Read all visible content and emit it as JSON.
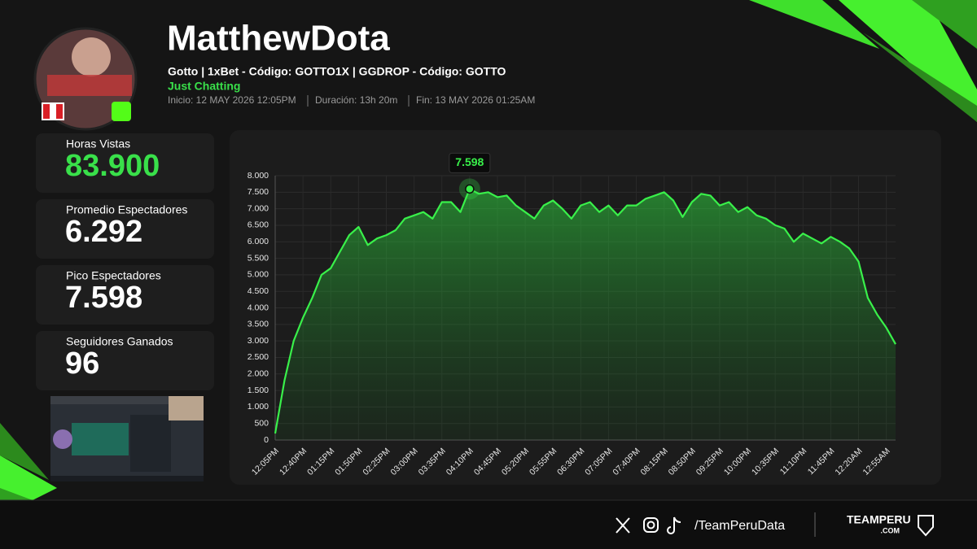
{
  "header": {
    "channel": "MatthewDota",
    "subtitle": "Gotto | 1xBet - Código: GOTTO1X | GGDROP - Código: GOTTO",
    "category": "Just Chatting",
    "start": "Inicio: 12 MAY 2026 12:05PM",
    "duration": "Duración: 13h 20m",
    "end": "Fin: 13 MAY 2026 01:25AM"
  },
  "stats": [
    {
      "label": "Horas Vistas",
      "value": "83.900"
    },
    {
      "label": "Promedio Espectadores",
      "value": "6.292"
    },
    {
      "label": "Pico Espectadores",
      "value": "7.598"
    },
    {
      "label": "Seguidores Ganados",
      "value": "96"
    }
  ],
  "footer": {
    "handle": "/TeamPeruData",
    "brand": "TEAMPERU",
    "domain": ".COM"
  },
  "chart_data": {
    "type": "line",
    "area": true,
    "grid": true,
    "categories": [
      "12:05PM",
      null,
      null,
      "12:40PM",
      null,
      null,
      "01:15PM",
      null,
      null,
      "01:50PM",
      null,
      null,
      "02:25PM",
      null,
      null,
      "03:00PM",
      null,
      null,
      "03:35PM",
      null,
      null,
      "04:10PM",
      null,
      null,
      "04:45PM",
      null,
      null,
      "05:20PM",
      null,
      null,
      "05:55PM",
      null,
      null,
      "06:30PM",
      null,
      null,
      "07:05PM",
      null,
      null,
      "07:40PM",
      null,
      null,
      "08:15PM",
      null,
      null,
      "08:50PM",
      null,
      null,
      "09:25PM",
      null,
      null,
      "10:00PM",
      null,
      null,
      "10:35PM",
      null,
      null,
      "11:10PM",
      null,
      null,
      "11:45PM",
      null,
      null,
      "12:20AM",
      null,
      null,
      "12:55AM",
      null
    ],
    "series": [
      {
        "color": "#39f04a",
        "values": [
          200,
          1800,
          3000,
          3700,
          4300,
          5000,
          5200,
          5700,
          6200,
          6450,
          5900,
          6100,
          6200,
          6350,
          6700,
          6800,
          6900,
          6700,
          7200,
          7200,
          6900,
          7598,
          7450,
          7500,
          7350,
          7400,
          7100,
          6900,
          6700,
          7100,
          7250,
          7000,
          6700,
          7100,
          7200,
          6900,
          7100,
          6800,
          7100,
          7100,
          7300,
          7400,
          7500,
          7250,
          6750,
          7200,
          7450,
          7400,
          7100,
          7200,
          6900,
          7050,
          6800,
          6700,
          6500,
          6400,
          6000,
          6250,
          6100,
          5950,
          6150,
          6000,
          5800,
          5400,
          4300,
          3800,
          3400,
          2900
        ],
        "value_labels": [
          null,
          null,
          null,
          null,
          null,
          null,
          null,
          null,
          null,
          null,
          null,
          null,
          null,
          null,
          null,
          null,
          null,
          null,
          null,
          null,
          null,
          "7.598",
          null,
          null,
          null,
          null,
          null,
          null,
          null,
          null,
          null,
          null,
          null,
          null,
          null,
          null,
          null,
          null,
          null,
          null,
          null,
          null,
          null,
          null,
          null,
          null,
          null,
          null,
          null,
          null,
          null,
          null,
          null,
          null,
          null,
          null,
          null,
          null,
          null,
          null,
          null,
          null,
          null,
          null,
          null,
          null,
          null,
          null
        ]
      }
    ],
    "ylim": [
      0,
      8000
    ],
    "yticks": [
      0,
      500,
      {
        "value": 1000,
        "label": "1.000"
      },
      {
        "value": 1500,
        "label": "1.500"
      },
      {
        "value": 2000,
        "label": "2.000"
      },
      {
        "value": 2500,
        "label": "2.500"
      },
      {
        "value": 3000,
        "label": "3.000"
      },
      {
        "value": 3500,
        "label": "3.500"
      },
      {
        "value": 4000,
        "label": "4.000"
      },
      {
        "value": 4500,
        "label": "4.500"
      },
      {
        "value": 5000,
        "label": "5.000"
      },
      {
        "value": 5500,
        "label": "5.500"
      },
      {
        "value": 6000,
        "label": "6.000"
      },
      {
        "value": 6500,
        "label": "6.500"
      },
      {
        "value": 7000,
        "label": "7.000"
      },
      {
        "value": 7500,
        "label": "7.500"
      },
      {
        "value": 8000,
        "label": "8.000"
      }
    ]
  }
}
